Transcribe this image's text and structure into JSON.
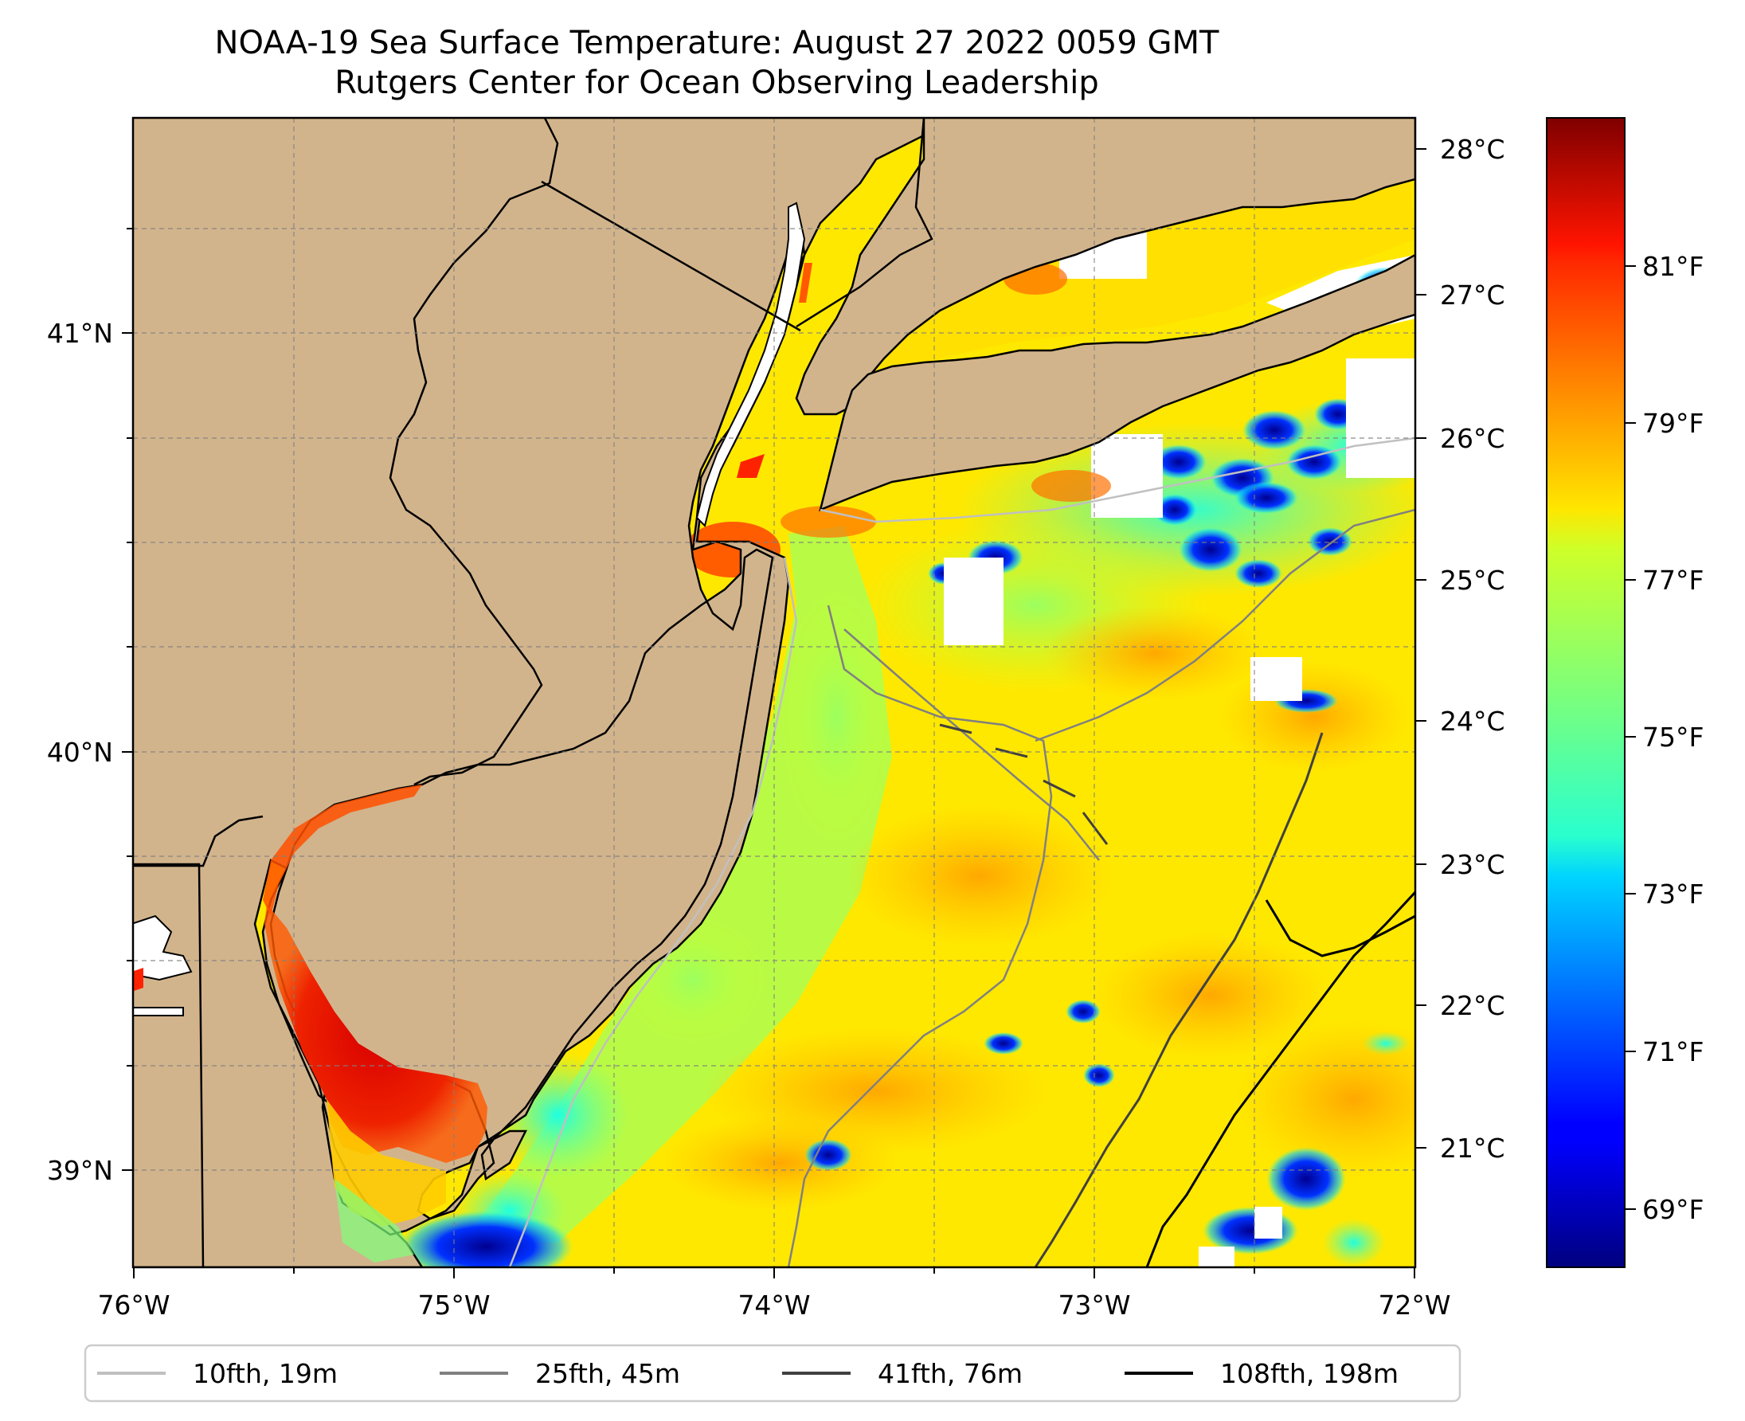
{
  "title": "NOAA-19 Sea Surface Temperature: August 27 2022 0059 GMT",
  "subtitle": "Rutgers Center for Ocean Observing Leadership",
  "map": {
    "lon_range": [
      -76,
      -72
    ],
    "lat_range": [
      38.75,
      41.5
    ],
    "x_ticks": [
      "76°W",
      "75°W",
      "74°W",
      "73°W",
      "72°W"
    ],
    "y_ticks": [
      "41°N",
      "40°N",
      "39°N"
    ],
    "land_color": "#d2b48c",
    "grid": true
  },
  "colorbar": {
    "celsius_ticks": [
      "28°C",
      "27°C",
      "26°C",
      "25°C",
      "24°C",
      "23°C",
      "22°C",
      "21°C"
    ],
    "fahrenheit_ticks": [
      "81°F",
      "79°F",
      "77°F",
      "75°F",
      "73°F",
      "71°F",
      "69°F"
    ],
    "colormap": "jet"
  },
  "legend": [
    {
      "label": "10fth, 19m",
      "color": "#c0c0c0"
    },
    {
      "label": "25fth, 45m",
      "color": "#808080"
    },
    {
      "label": "41fth, 76m",
      "color": "#404040"
    },
    {
      "label": "108fth, 198m",
      "color": "#000000"
    }
  ]
}
